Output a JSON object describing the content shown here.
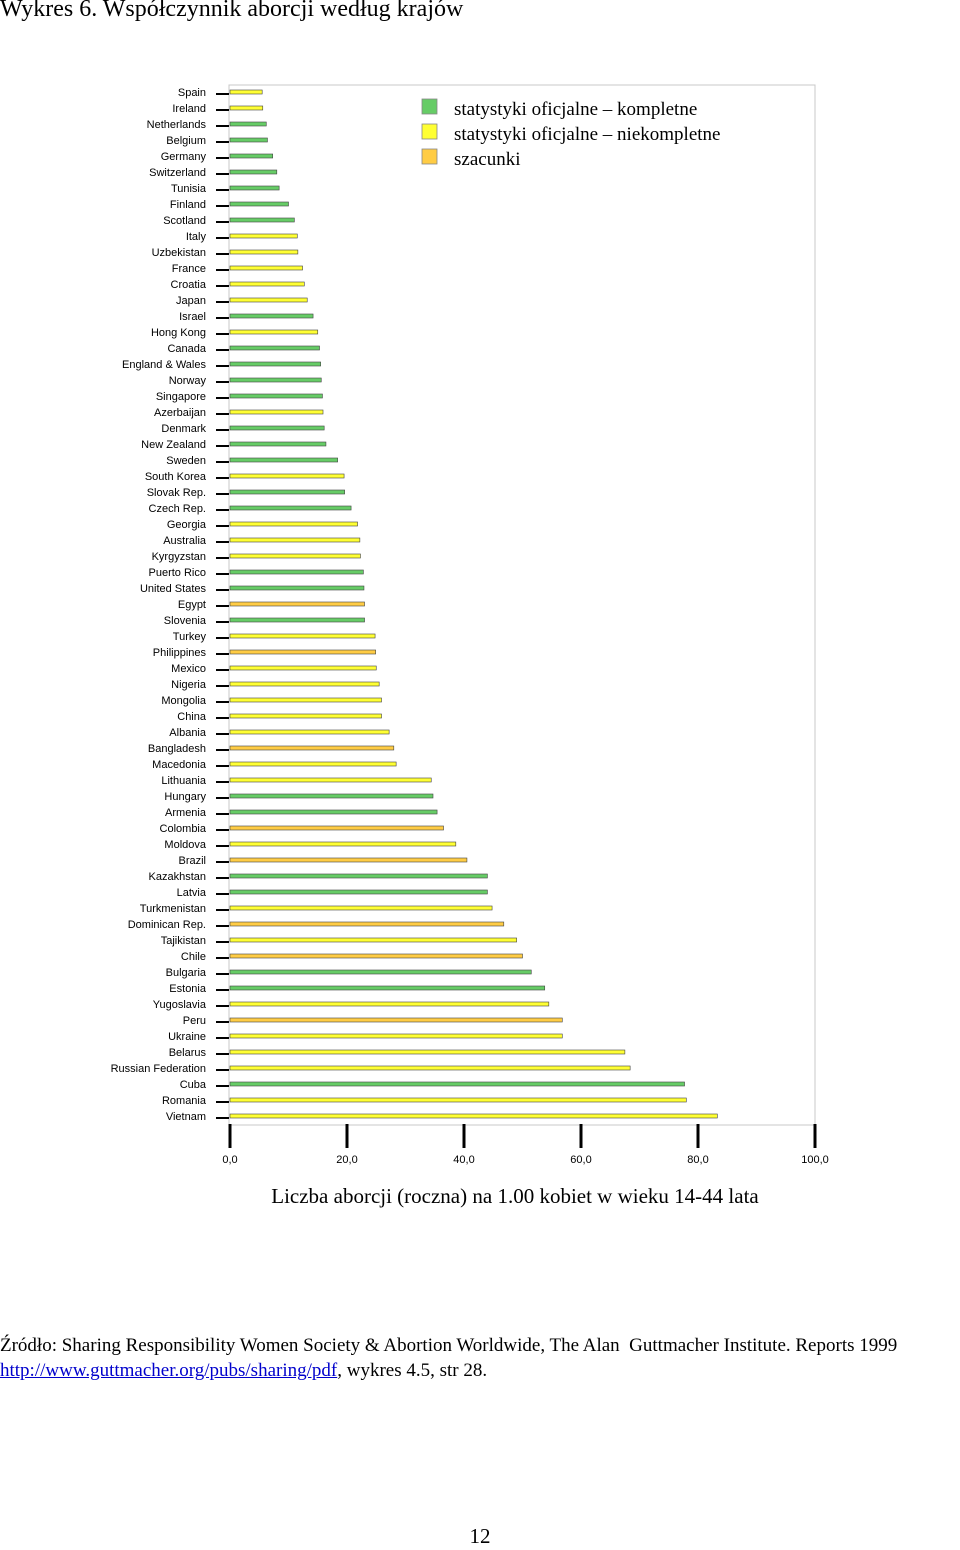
{
  "title": "Wykres 6. Współczynnik aborcji według krajów",
  "chart_data": {
    "type": "bar",
    "orientation": "horizontal",
    "categories": [
      "Spain",
      "Ireland",
      "Netherlands",
      "Belgium",
      "Germany",
      "Switzerland",
      "Tunisia",
      "Finland",
      "Scotland",
      "Italy",
      "Uzbekistan",
      "France",
      "Croatia",
      "Japan",
      "Israel",
      "Hong Kong",
      "Canada",
      "England & Wales",
      "Norway",
      "Singapore",
      "Azerbaijan",
      "Denmark",
      "New Zealand",
      "Sweden",
      "South Korea",
      "Slovak Rep.",
      "Czech Rep.",
      "Georgia",
      "Australia",
      "Kyrgyzstan",
      "Puerto Rico",
      "United States",
      "Egypt",
      "Slovenia",
      "Turkey",
      "Philippines",
      "Mexico",
      "Nigeria",
      "Mongolia",
      "China",
      "Albania",
      "Bangladesh",
      "Macedonia",
      "Lithuania",
      "Hungary",
      "Armenia",
      "Colombia",
      "Moldova",
      "Brazil",
      "Kazakhstan",
      "Latvia",
      "Turkmenistan",
      "Dominican Rep.",
      "Tajikistan",
      "Chile",
      "Bulgaria",
      "Estonia",
      "Yugoslavia",
      "Peru",
      "Ukraine",
      "Belarus",
      "Russian Federation",
      "Cuba",
      "Romania",
      "Vietnam"
    ],
    "values": [
      5.5,
      5.6,
      6.2,
      6.4,
      7.3,
      8.0,
      8.4,
      10.0,
      11.0,
      11.5,
      11.6,
      12.4,
      12.7,
      13.2,
      14.2,
      15.0,
      15.3,
      15.5,
      15.6,
      15.8,
      15.9,
      16.1,
      16.4,
      18.4,
      19.5,
      19.6,
      20.7,
      21.8,
      22.2,
      22.3,
      22.8,
      22.9,
      23.0,
      23.0,
      24.8,
      24.9,
      25.0,
      25.5,
      25.9,
      25.9,
      27.2,
      28.0,
      28.4,
      34.4,
      34.7,
      35.4,
      36.5,
      38.6,
      40.5,
      44.0,
      44.0,
      44.8,
      46.8,
      49.0,
      50.0,
      51.5,
      53.8,
      54.5,
      56.8,
      56.8,
      67.5,
      68.4,
      77.7,
      78.0,
      83.3
    ],
    "source_type": [
      "incomplete",
      "incomplete",
      "complete",
      "complete",
      "complete",
      "complete",
      "complete",
      "complete",
      "complete",
      "incomplete",
      "incomplete",
      "incomplete",
      "incomplete",
      "incomplete",
      "complete",
      "incomplete",
      "complete",
      "complete",
      "complete",
      "complete",
      "incomplete",
      "complete",
      "complete",
      "complete",
      "incomplete",
      "complete",
      "complete",
      "incomplete",
      "incomplete",
      "incomplete",
      "complete",
      "complete",
      "estimate",
      "complete",
      "incomplete",
      "estimate",
      "incomplete",
      "incomplete",
      "incomplete",
      "incomplete",
      "incomplete",
      "estimate",
      "incomplete",
      "incomplete",
      "complete",
      "complete",
      "estimate",
      "incomplete",
      "estimate",
      "complete",
      "complete",
      "incomplete",
      "estimate",
      "incomplete",
      "estimate",
      "complete",
      "complete",
      "incomplete",
      "estimate",
      "incomplete",
      "incomplete",
      "incomplete",
      "complete",
      "incomplete",
      "incomplete"
    ],
    "colors": {
      "complete": "#66cc66",
      "incomplete": "#ffff33",
      "estimate": "#ffcc44"
    },
    "legend": [
      {
        "key": "complete",
        "label": "statystyki oficjalne – kompletne"
      },
      {
        "key": "incomplete",
        "label": "statystyki oficjalne – niekompletne"
      },
      {
        "key": "estimate",
        "label": "szacunki"
      }
    ],
    "legend_position": "top-right",
    "xlabel": "Liczba aborcji (roczna) na 1.00 kobiet w wieku 14-44 lata",
    "xlim": [
      0,
      100
    ],
    "xticks": [
      "0,0",
      "20,0",
      "40,0",
      "60,0",
      "80,0",
      "100,0"
    ],
    "grid": false
  },
  "source": {
    "text": "Źródło: Sharing Responsibility Women Society & Abortion Worldwide, The Alan  Guttmacher Institute. Reports 1999 ",
    "link": "http://www.guttmacher.org/pubs/sharing/pdf",
    "after": ", wykres 4.5, str 28."
  },
  "page_number": "12"
}
